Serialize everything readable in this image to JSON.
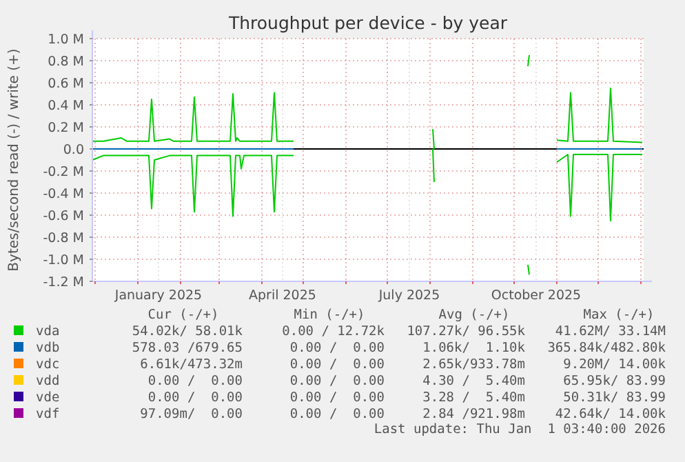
{
  "chart_data": {
    "type": "line",
    "title": "Throughput per device - by year",
    "ylabel": "Bytes/second read (-) / write (+)",
    "x": [
      "2024-11-29",
      "2024-12-07",
      "2024-12-20",
      "2024-12-24",
      "2025-01-09",
      "2025-01-11",
      "2025-01-13",
      "2025-01-24",
      "2025-01-27",
      "2025-02-09",
      "2025-02-11",
      "2025-02-13",
      "2025-03-09",
      "2025-03-11",
      "2025-03-13",
      "2025-03-14",
      "2025-03-16",
      "2025-03-17",
      "2025-03-19",
      "2025-04-08",
      "2025-04-10",
      "2025-04-12",
      "2025-04-24",
      "2025-04-25",
      "2025-08-03",
      "2025-08-04",
      "2025-08-05",
      "2025-10-11",
      "2025-10-12",
      "2025-10-13",
      "2025-11-01",
      "2025-11-09",
      "2025-11-11",
      "2025-11-13",
      "2025-12-08",
      "2025-12-10",
      "2025-12-12",
      "2026-01-02"
    ],
    "xlim": [
      "2024-11-29",
      "2026-01-03"
    ],
    "xticks": [
      {
        "value": "2024-12-01",
        "label": null
      },
      {
        "value": "2025-01-01",
        "label": null
      },
      {
        "value": "2025-02-01",
        "label": null
      },
      {
        "value": "2025-03-01",
        "label": null
      },
      {
        "value": "2025-04-01",
        "label": null
      },
      {
        "value": "2025-05-01",
        "label": null
      },
      {
        "value": "2025-06-01",
        "label": null
      },
      {
        "value": "2025-07-01",
        "label": null
      },
      {
        "value": "2025-08-01",
        "label": null
      },
      {
        "value": "2025-09-01",
        "label": null
      },
      {
        "value": "2025-10-01",
        "label": null
      },
      {
        "value": "2025-11-01",
        "label": null
      },
      {
        "value": "2025-12-01",
        "label": null
      },
      {
        "value": "2026-01-01",
        "label": null
      },
      {
        "value": "2025-01-16",
        "label": "January 2025"
      },
      {
        "value": "2025-04-16",
        "label": "April 2025"
      },
      {
        "value": "2025-07-17",
        "label": "July 2025"
      },
      {
        "value": "2025-10-17",
        "label": "October 2025"
      }
    ],
    "ylim": [
      -1200000,
      1000000
    ],
    "yticks": [
      {
        "value": 1000000,
        "label": "1.0 M"
      },
      {
        "value": 800000,
        "label": "0.8 M"
      },
      {
        "value": 600000,
        "label": "0.6 M"
      },
      {
        "value": 400000,
        "label": "0.4 M"
      },
      {
        "value": 200000,
        "label": "0.2 M"
      },
      {
        "value": 0,
        "label": "0.0"
      },
      {
        "value": -200000,
        "label": "-0.2 M"
      },
      {
        "value": -400000,
        "label": "-0.4 M"
      },
      {
        "value": -600000,
        "label": "-0.6 M"
      },
      {
        "value": -800000,
        "label": "-0.8 M"
      },
      {
        "value": -1000000,
        "label": "-1.0 M"
      },
      {
        "value": -1200000,
        "label": "-1.2 M"
      }
    ],
    "grid": true,
    "legend": "bottom",
    "ref_lines": [
      {
        "axis": "y",
        "value": 0,
        "color": "#000000"
      }
    ],
    "series": [
      {
        "name": "vda",
        "color": "#00cc00",
        "values": [
          70000,
          70000,
          100000,
          70000,
          70000,
          450000,
          70000,
          90000,
          70000,
          70000,
          470000,
          70000,
          70000,
          500000,
          70000,
          100000,
          70000,
          70000,
          70000,
          70000,
          510000,
          70000,
          70000,
          null,
          180000,
          0,
          null,
          750000,
          850000,
          null,
          80000,
          70000,
          510000,
          70000,
          70000,
          550000,
          70000,
          60000
        ]
      },
      {
        "color": "#00cc00",
        "values": [
          -100000,
          -60000,
          -60000,
          -60000,
          -60000,
          -540000,
          -100000,
          -60000,
          -60000,
          -60000,
          -570000,
          -60000,
          -60000,
          -610000,
          -60000,
          -60000,
          -60000,
          -180000,
          -60000,
          -60000,
          -570000,
          -60000,
          -60000,
          null,
          0,
          -300000,
          null,
          -1050000,
          -1140000,
          null,
          -120000,
          -50000,
          -610000,
          -50000,
          -50000,
          -650000,
          -50000,
          -50000
        ]
      },
      {
        "name": "vdb",
        "color": "#0066b3",
        "values": [
          0,
          0,
          0,
          0,
          0,
          0,
          0,
          0,
          0,
          0,
          0,
          0,
          0,
          0,
          0,
          0,
          0,
          0,
          0,
          0,
          0,
          0,
          0,
          null,
          null,
          null,
          null,
          null,
          null,
          null,
          0,
          0,
          0,
          0,
          0,
          0,
          0,
          0
        ]
      },
      {
        "name": "vdc",
        "color": "#ff8000",
        "values": [
          null,
          null,
          null,
          null,
          null,
          null,
          null,
          null,
          null,
          null,
          null,
          null,
          null,
          null,
          null,
          null,
          null,
          null,
          null,
          null,
          null,
          null,
          null,
          null,
          null,
          null,
          null,
          null,
          null,
          null,
          null,
          null,
          null,
          null,
          null,
          null,
          null,
          null
        ]
      },
      {
        "name": "vdd",
        "color": "#ffcc00",
        "values": [
          null,
          null,
          null,
          null,
          null,
          null,
          null,
          null,
          null,
          null,
          null,
          null,
          null,
          null,
          null,
          null,
          null,
          null,
          null,
          null,
          null,
          null,
          null,
          null,
          null,
          null,
          null,
          null,
          null,
          null,
          null,
          null,
          null,
          null,
          null,
          null,
          null,
          null
        ]
      },
      {
        "name": "vde",
        "color": "#330099",
        "values": [
          null,
          null,
          null,
          null,
          null,
          null,
          null,
          null,
          null,
          null,
          null,
          null,
          null,
          null,
          null,
          null,
          null,
          null,
          null,
          null,
          null,
          null,
          null,
          null,
          null,
          null,
          null,
          null,
          null,
          null,
          null,
          null,
          null,
          null,
          null,
          null,
          null,
          null
        ]
      },
      {
        "name": "vdf",
        "color": "#990099",
        "values": [
          null,
          null,
          null,
          null,
          null,
          null,
          null,
          null,
          null,
          null,
          null,
          null,
          null,
          null,
          null,
          null,
          null,
          null,
          null,
          null,
          null,
          null,
          null,
          null,
          null,
          null,
          null,
          null,
          null,
          null,
          null,
          null,
          null,
          null,
          null,
          null,
          null,
          null
        ]
      }
    ],
    "annotations": [
      "Cur (-/+)",
      "Min (-/+)",
      "Avg (-/+)",
      "Max (-/+)",
      "54.02k/ 58.01k",
      "0.00 / 12.72k",
      "107.27k/ 96.55k",
      "41.62M/ 33.14M",
      "578.03 /679.65",
      "0.00 /  0.00",
      "1.06k/  1.10k",
      "365.84k/482.80k",
      "6.61k/473.32m",
      "0.00 /  0.00",
      "2.65k/933.78m",
      "9.20M/ 14.00k",
      "0.00 /  0.00",
      "0.00 /  0.00",
      "4.30 /  5.40m",
      "65.95k/ 83.99",
      "0.00 /  0.00",
      "0.00 /  0.00",
      "3.28 /  5.40m",
      "50.31k/ 83.99",
      "97.09m/  0.00",
      "0.00 /  0.00",
      "2.84 /921.98m",
      "42.64k/ 14.00k",
      "Last update: Thu Jan  1 03:40:00 2026"
    ]
  }
}
